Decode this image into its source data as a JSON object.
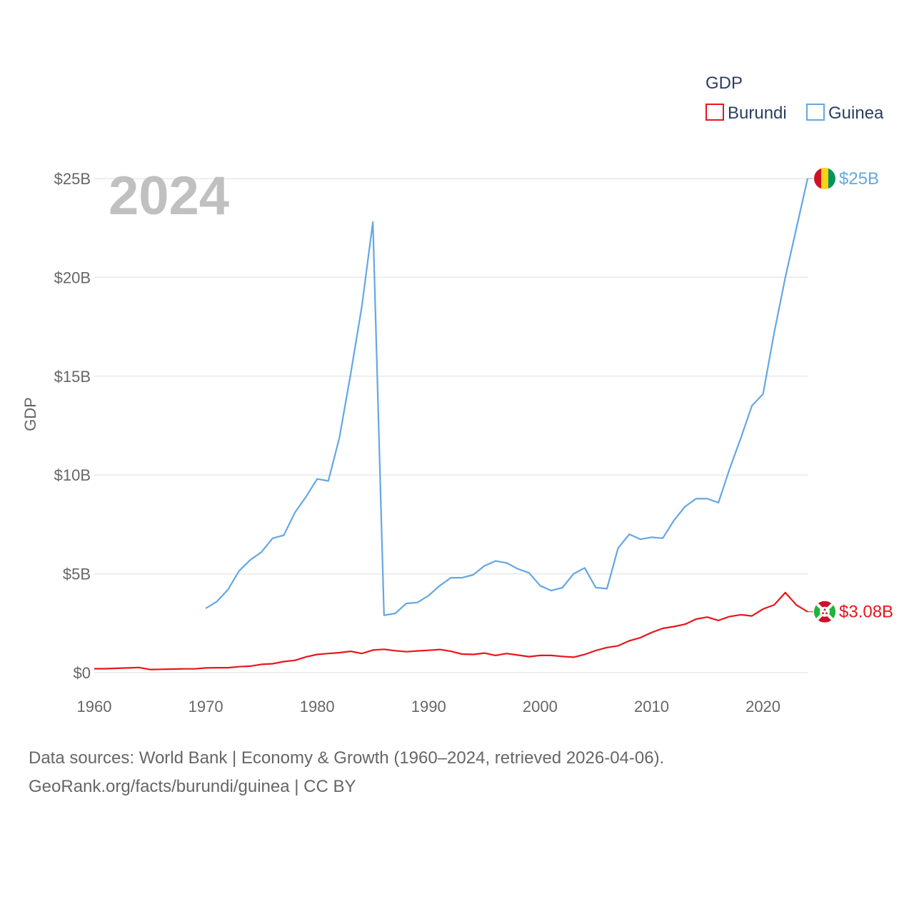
{
  "chart_data": {
    "type": "line",
    "ylabel": "GDP",
    "year_label": "2024",
    "legend": {
      "title": "GDP",
      "placement": "top-right"
    },
    "ylim": [
      0,
      25000000000
    ],
    "xlim": [
      1960,
      2024
    ],
    "x_ticks": [
      1960,
      1970,
      1980,
      1990,
      2000,
      2010,
      2020
    ],
    "x_tick_labels": [
      "1960",
      "1970",
      "1980",
      "1990",
      "2000",
      "2010",
      "2020"
    ],
    "y_ticks": [
      0,
      5000000000,
      10000000000,
      15000000000,
      20000000000,
      25000000000
    ],
    "y_tick_labels": [
      "$0",
      "$5B",
      "$10B",
      "$15B",
      "$20B",
      "$25B"
    ],
    "series": [
      {
        "name": "Burundi",
        "color": "#e8161c",
        "end_label": "$3.08B",
        "flag": "burundi-flag",
        "x": [
          1960,
          1961,
          1962,
          1963,
          1964,
          1965,
          1966,
          1967,
          1968,
          1969,
          1970,
          1971,
          1972,
          1973,
          1974,
          1975,
          1976,
          1977,
          1978,
          1979,
          1980,
          1981,
          1982,
          1983,
          1984,
          1985,
          1986,
          1987,
          1988,
          1989,
          1990,
          1991,
          1992,
          1993,
          1994,
          1995,
          1996,
          1997,
          1998,
          1999,
          2000,
          2001,
          2002,
          2003,
          2004,
          2005,
          2006,
          2007,
          2008,
          2009,
          2010,
          2011,
          2012,
          2013,
          2014,
          2015,
          2016,
          2017,
          2018,
          2019,
          2020,
          2021,
          2022,
          2023,
          2024
        ],
        "values": [
          0.2,
          0.2,
          0.22,
          0.24,
          0.26,
          0.16,
          0.17,
          0.18,
          0.19,
          0.19,
          0.24,
          0.25,
          0.25,
          0.3,
          0.33,
          0.42,
          0.45,
          0.56,
          0.62,
          0.8,
          0.92,
          0.97,
          1.01,
          1.08,
          0.97,
          1.14,
          1.18,
          1.11,
          1.06,
          1.1,
          1.13,
          1.17,
          1.08,
          0.94,
          0.92,
          0.99,
          0.87,
          0.97,
          0.89,
          0.81,
          0.87,
          0.87,
          0.82,
          0.78,
          0.92,
          1.12,
          1.27,
          1.36,
          1.61,
          1.77,
          2.03,
          2.24,
          2.33,
          2.45,
          2.71,
          2.81,
          2.64,
          2.84,
          2.93,
          2.87,
          3.22,
          3.43,
          4.05,
          3.42,
          3.08
        ]
      },
      {
        "name": "Guinea",
        "color": "#64a7e3",
        "end_label": "$25B",
        "flag": "guinea-flag",
        "x": [
          1970,
          1971,
          1972,
          1973,
          1974,
          1975,
          1976,
          1977,
          1978,
          1979,
          1980,
          1981,
          1982,
          1983,
          1984,
          1985,
          1986,
          1987,
          1988,
          1989,
          1990,
          1991,
          1992,
          1993,
          1994,
          1995,
          1996,
          1997,
          1998,
          1999,
          2000,
          2001,
          2002,
          2003,
          2004,
          2005,
          2006,
          2007,
          2008,
          2009,
          2010,
          2011,
          2012,
          2013,
          2014,
          2015,
          2016,
          2017,
          2018,
          2019,
          2020,
          2021,
          2022,
          2023,
          2024
        ],
        "values": [
          3.25,
          3.6,
          4.2,
          5.15,
          5.7,
          6.1,
          6.8,
          6.95,
          8.1,
          8.9,
          9.8,
          9.7,
          11.9,
          15.1,
          18.5,
          22.8,
          2.9,
          3.0,
          3.5,
          3.55,
          3.9,
          4.4,
          4.8,
          4.8,
          4.95,
          5.4,
          5.65,
          5.55,
          5.25,
          5.05,
          4.4,
          4.15,
          4.3,
          5.0,
          5.3,
          4.3,
          4.25,
          6.3,
          7.0,
          6.75,
          6.85,
          6.8,
          7.7,
          8.4,
          8.8,
          8.8,
          8.6,
          10.3,
          11.85,
          13.5,
          14.1,
          17.2,
          20.0,
          22.5,
          25.0
        ]
      }
    ]
  },
  "source": {
    "line1": "Data sources: World Bank | Economy & Growth (1960–2024, retrieved 2026-04-06).",
    "line2": "GeoRank.org/facts/burundi/guinea | CC BY"
  }
}
